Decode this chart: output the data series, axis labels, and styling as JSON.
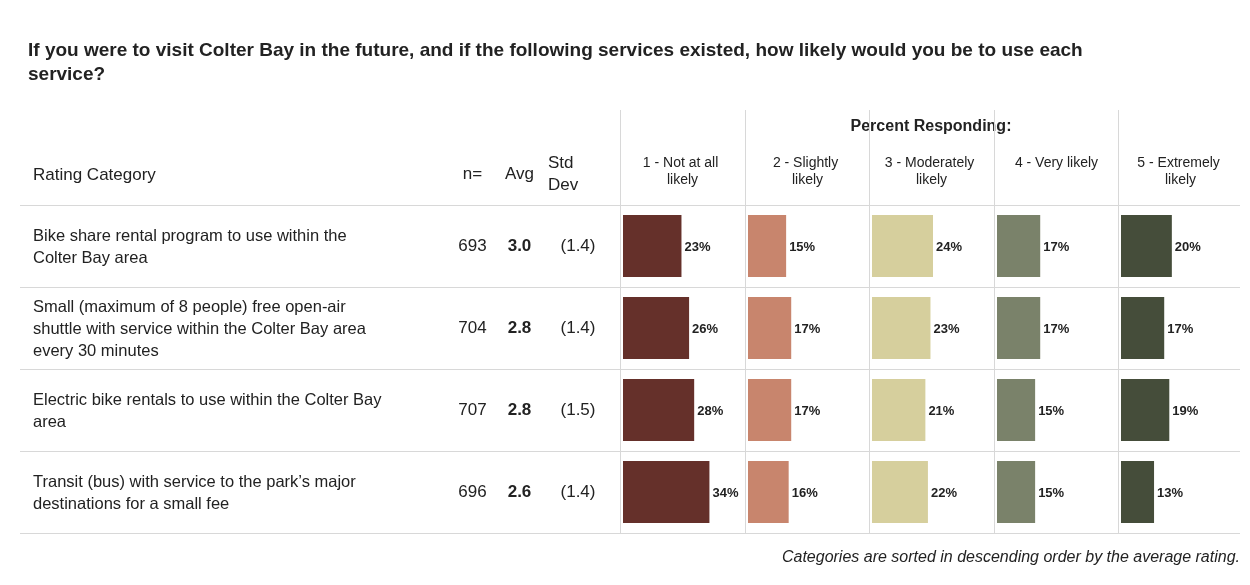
{
  "chart_data": [
    {
      "type": "other",
      "title": "If you were to visit Colter Bay in the future, and if the following services existed, how likely would you be to use each service?",
      "ylabel": "Rating Category",
      "categories": [
        "Bike share rental program to use within the Colter Bay area",
        "Small (maximum of 8 people) free open-air shuttle with service within the Colter Bay area every 30 minutes",
        "Electric bike rentals to use within the Colter Bay area",
        "Transit (bus) with service to the park’s major destinations for a small fee"
      ],
      "series": [
        {
          "name": "n=",
          "values": [
            693,
            704,
            707,
            696
          ],
          "value_labels": [
            "693",
            "704",
            "707",
            "696"
          ]
        },
        {
          "name": "Avg",
          "values": [
            3.0,
            2.8,
            2.8,
            2.6
          ],
          "value_labels": [
            "3.0",
            "2.8",
            "2.8",
            "2.6"
          ]
        },
        {
          "name": "Std Dev",
          "values": [
            1.4,
            1.4,
            1.5,
            1.4
          ],
          "value_labels": [
            "(1.4)",
            "(1.4)",
            "(1.5)",
            "(1.4)"
          ]
        }
      ],
      "annotations": [
        "Percent Responding:",
        "Categories are sorted in descending order by the average rating."
      ]
    },
    {
      "type": "bar",
      "orientation": "horizontal",
      "title": "1 - Not at all likely",
      "categories": [
        null,
        null,
        null,
        null
      ],
      "values": [
        23,
        26,
        28,
        34
      ],
      "color": "#65302a",
      "value_labels": [
        "23%",
        "26%",
        "28%",
        "34%"
      ],
      "tick_labels": false
    },
    {
      "type": "bar",
      "orientation": "horizontal",
      "title": "2 - Slightly likely",
      "categories": [
        null,
        null,
        null,
        null
      ],
      "values": [
        15,
        17,
        17,
        16
      ],
      "color": "#c8856d",
      "value_labels": [
        "15%",
        "17%",
        "17%",
        "16%"
      ],
      "tick_labels": false
    },
    {
      "type": "bar",
      "orientation": "horizontal",
      "title": "3 - Moderately likely",
      "categories": [
        null,
        null,
        null,
        null
      ],
      "values": [
        24,
        23,
        21,
        22
      ],
      "color": "#d6cf9d",
      "value_labels": [
        "24%",
        "23%",
        "21%",
        "22%"
      ],
      "tick_labels": false
    },
    {
      "type": "bar",
      "orientation": "horizontal",
      "title": "4 - Very likely",
      "categories": [
        null,
        null,
        null,
        null
      ],
      "values": [
        17,
        17,
        15,
        15
      ],
      "color": "#7a826a",
      "value_labels": [
        "17%",
        "17%",
        "15%",
        "15%"
      ],
      "tick_labels": false
    },
    {
      "type": "bar",
      "orientation": "horizontal",
      "title": "5 - Extremely likely",
      "categories": [
        null,
        null,
        null,
        null
      ],
      "values": [
        20,
        17,
        19,
        13
      ],
      "color": "#454d3a",
      "value_labels": [
        "20%",
        "17%",
        "19%",
        "13%"
      ],
      "tick_labels": false
    }
  ]
}
